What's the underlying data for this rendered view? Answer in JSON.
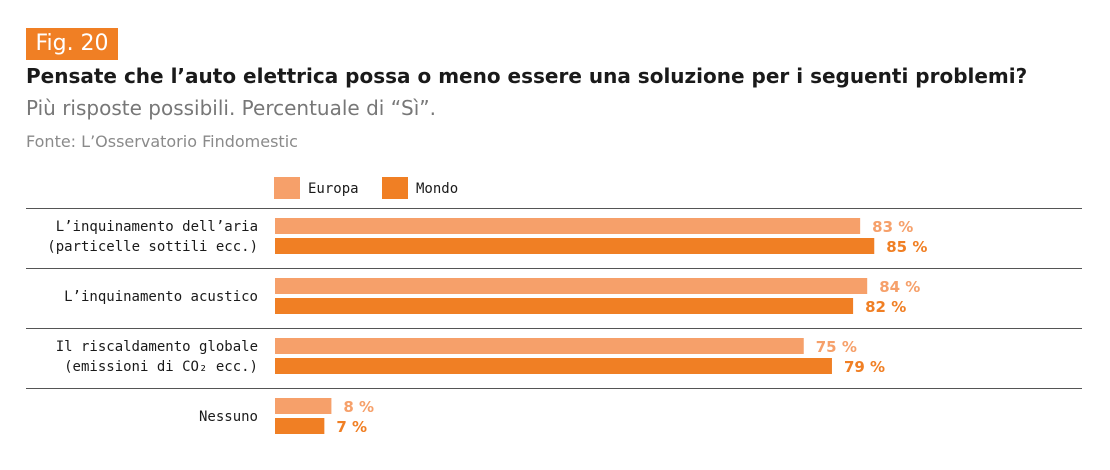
{
  "header": {
    "fig_label": "Fig. 20",
    "title": "Pensate che l’auto elettrica possa o meno essere una soluzione per i seguenti problemi?",
    "subtitle": "Più risposte possibili. Percentuale di “Sì”.",
    "source": "Fonte: L’Osservatorio Findomestic"
  },
  "colors": {
    "europa": "#f6a06a",
    "mondo": "#f07f24",
    "badge": "#f07f24",
    "divider": "#555555"
  },
  "chart_data": {
    "type": "bar",
    "orientation": "horizontal",
    "categories": [
      [
        "L’inquinamento dell’aria",
        "(particelle sottili ecc.)"
      ],
      [
        "L’inquinamento acustico"
      ],
      [
        "Il riscaldamento globale",
        "(emissioni di CO₂ ecc.)"
      ],
      [
        "Nessuno"
      ]
    ],
    "series": [
      {
        "name": "Europa",
        "values": [
          83,
          84,
          75,
          8
        ],
        "color": "#f6a06a"
      },
      {
        "name": "Mondo",
        "values": [
          85,
          82,
          79,
          7
        ],
        "color": "#f07f24"
      }
    ],
    "value_suffix": " %",
    "xlim": [
      0,
      100
    ],
    "legend": "top",
    "grid": false
  }
}
